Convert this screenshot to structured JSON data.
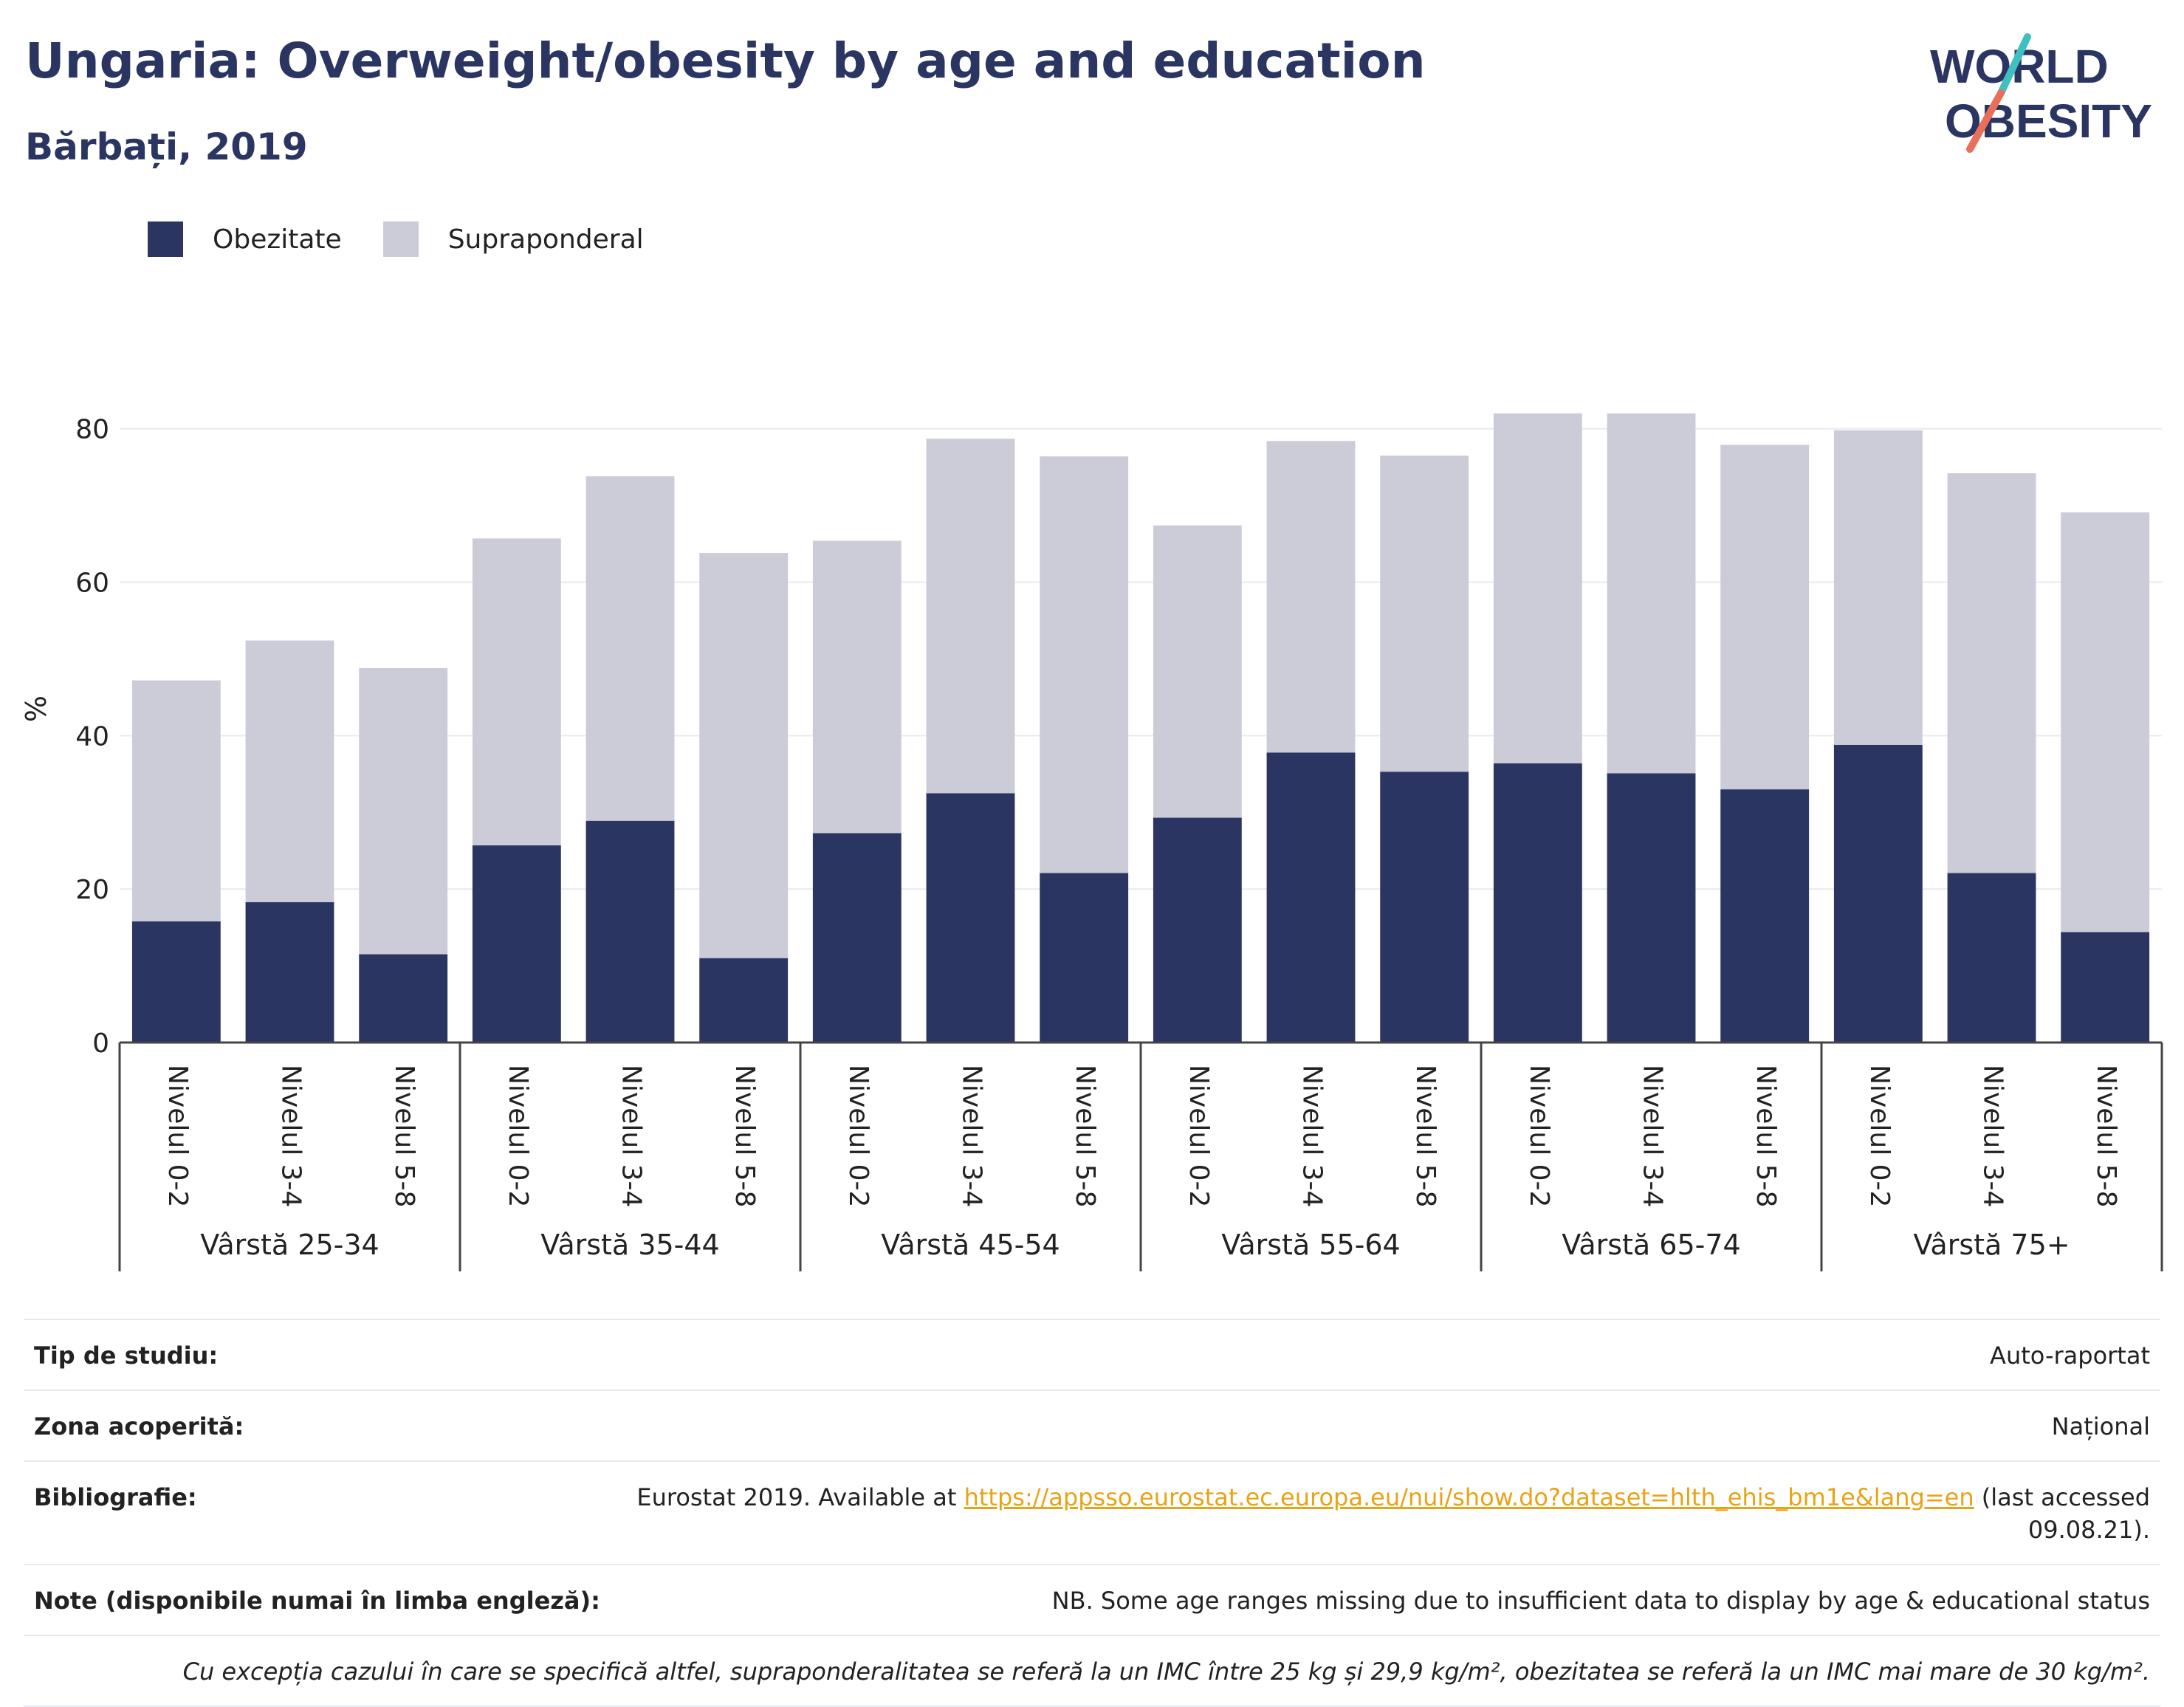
{
  "header": {
    "title": "Ungaria: Overweight/obesity by age and education",
    "subtitle": "Bărbați, 2019"
  },
  "logo": {
    "line1": "WORLD",
    "line2": "OBESITY",
    "accent_colors": [
      "#3fbfc0",
      "#e8705b"
    ],
    "text_color": "#2b3562"
  },
  "colors": {
    "obesity": "#2b3562",
    "overweight": "#cbccd8",
    "grid": "#e9eaf0",
    "axis": "#444444"
  },
  "chart_data": {
    "type": "bar",
    "stacked": true,
    "ylabel": "%",
    "ylim": [
      0,
      87
    ],
    "yticks": [
      0,
      20,
      40,
      60,
      80
    ],
    "grid": true,
    "legend_position": "top-left",
    "groups": [
      {
        "label": "Vârstă 25-34",
        "categories": [
          "Nivelul 0-2",
          "Nivelul 3-4",
          "Nivelul 5-8"
        ]
      },
      {
        "label": "Vârstă 35-44",
        "categories": [
          "Nivelul 0-2",
          "Nivelul 3-4",
          "Nivelul 5-8"
        ]
      },
      {
        "label": "Vârstă 45-54",
        "categories": [
          "Nivelul 0-2",
          "Nivelul 3-4",
          "Nivelul 5-8"
        ]
      },
      {
        "label": "Vârstă 55-64",
        "categories": [
          "Nivelul 0-2",
          "Nivelul 3-4",
          "Nivelul 5-8"
        ]
      },
      {
        "label": "Vârstă 65-74",
        "categories": [
          "Nivelul 0-2",
          "Nivelul 3-4",
          "Nivelul 5-8"
        ]
      },
      {
        "label": "Vârstă 75+",
        "categories": [
          "Nivelul 0-2",
          "Nivelul 3-4",
          "Nivelul 5-8"
        ]
      }
    ],
    "series": [
      {
        "name": "Obezitate",
        "values": [
          15.8,
          18.3,
          11.5,
          25.7,
          28.9,
          11.0,
          27.3,
          32.5,
          22.1,
          29.3,
          37.8,
          35.3,
          36.4,
          35.1,
          33.0,
          38.8,
          22.1,
          14.4
        ]
      },
      {
        "name": "Supraponderal",
        "values": [
          31.4,
          34.1,
          37.3,
          40.0,
          44.9,
          52.8,
          38.1,
          46.2,
          54.3,
          38.1,
          40.6,
          41.2,
          45.6,
          46.9,
          44.9,
          41.0,
          52.1,
          54.7
        ]
      }
    ]
  },
  "info_table": {
    "rows": [
      {
        "label": "Tip de studiu:",
        "value": "Auto-raportat"
      },
      {
        "label": "Zona acoperită:",
        "value": "Național"
      },
      {
        "label": "Bibliografie:",
        "value_prefix": "Eurostat 2019. Available at ",
        "link": "https://appsso.eurostat.ec.europa.eu/nui/show.do?dataset=hlth_ehis_bm1e&lang=en",
        "value_suffix": " (last accessed 09.08.21)."
      },
      {
        "label": "Note (disponibile numai în limba engleză):",
        "value": "NB. Some age ranges missing due to insufficient data to display by age & educational status"
      }
    ],
    "footnote": "Cu excepția cazului în care se specifică altfel, supraponderalitatea se referă la un IMC între 25 kg și 29,9 kg/m², obezitatea se referă la un IMC mai mare de 30 kg/m²."
  }
}
